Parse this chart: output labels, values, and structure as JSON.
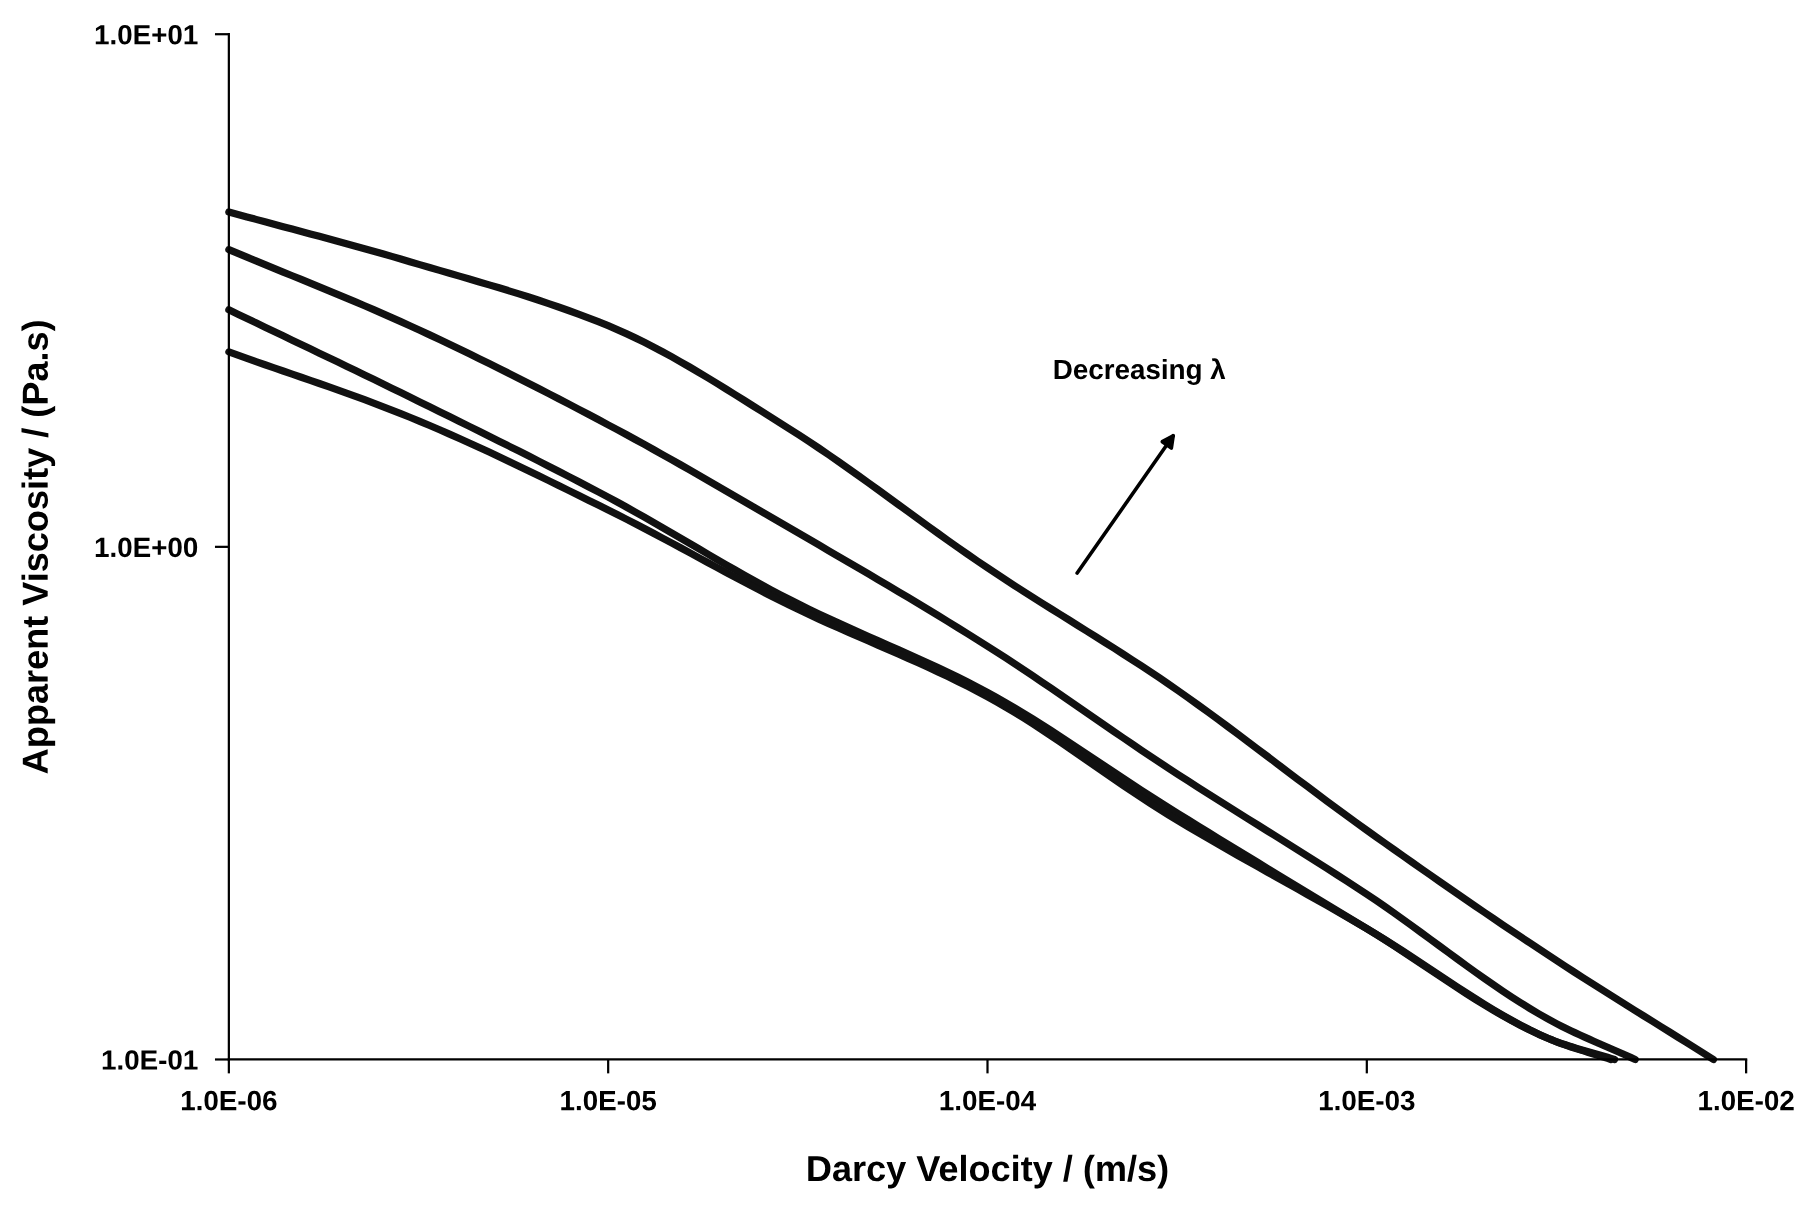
{
  "chart_data": {
    "type": "line",
    "xlabel": "Darcy Velocity / (m/s)",
    "ylabel": "Apparent Viscosity / (Pa.s)",
    "log": "xy",
    "grid": false,
    "marker": "none",
    "line_style": "solid",
    "xlim": [
      1e-06,
      0.01
    ],
    "ylim": [
      0.1,
      10
    ],
    "xticks": [
      {
        "value": 1e-06,
        "label": "1.0E-06"
      },
      {
        "value": 1e-05,
        "label": "1.0E-05"
      },
      {
        "value": 0.0001,
        "label": "1.0E-04"
      },
      {
        "value": 0.001,
        "label": "1.0E-03"
      },
      {
        "value": 0.01,
        "label": "1.0E-02"
      }
    ],
    "yticks": [
      {
        "value": 0.1,
        "label": "1.0E-01"
      },
      {
        "value": 1,
        "label": "1.0E+00"
      },
      {
        "value": 10,
        "label": "1.0E+01"
      }
    ],
    "series": [
      {
        "color": "#111111",
        "x": [
          1e-06,
          3e-06,
          1e-05,
          3e-05,
          0.0001,
          0.0003,
          0.001,
          0.003,
          0.0082
        ],
        "values": [
          4.5,
          3.6,
          2.7,
          1.7,
          0.91,
          0.54,
          0.28,
          0.16,
          0.1
        ]
      },
      {
        "color": "#111111",
        "x": [
          1e-06,
          3e-06,
          1e-05,
          3e-05,
          0.0001,
          0.0003,
          0.001,
          0.003,
          0.0051
        ],
        "values": [
          3.8,
          2.7,
          1.73,
          1.09,
          0.64,
          0.37,
          0.21,
          0.12,
          0.1
        ]
      },
      {
        "color": "#111111",
        "x": [
          1e-06,
          3e-06,
          1e-05,
          3e-05,
          0.0001,
          0.0003,
          0.001,
          0.003,
          0.0045
        ],
        "values": [
          2.9,
          1.96,
          1.25,
          0.79,
          0.52,
          0.31,
          0.18,
          0.11,
          0.1
        ]
      },
      {
        "color": "#111111",
        "x": [
          1e-06,
          3e-06,
          1e-05,
          3e-05,
          0.0001,
          0.0003,
          0.001,
          0.003,
          0.0044
        ],
        "values": [
          2.4,
          1.79,
          1.18,
          0.77,
          0.51,
          0.3,
          0.18,
          0.11,
          0.1
        ]
      }
    ],
    "annotations": [
      "Decreasing λ"
    ]
  }
}
